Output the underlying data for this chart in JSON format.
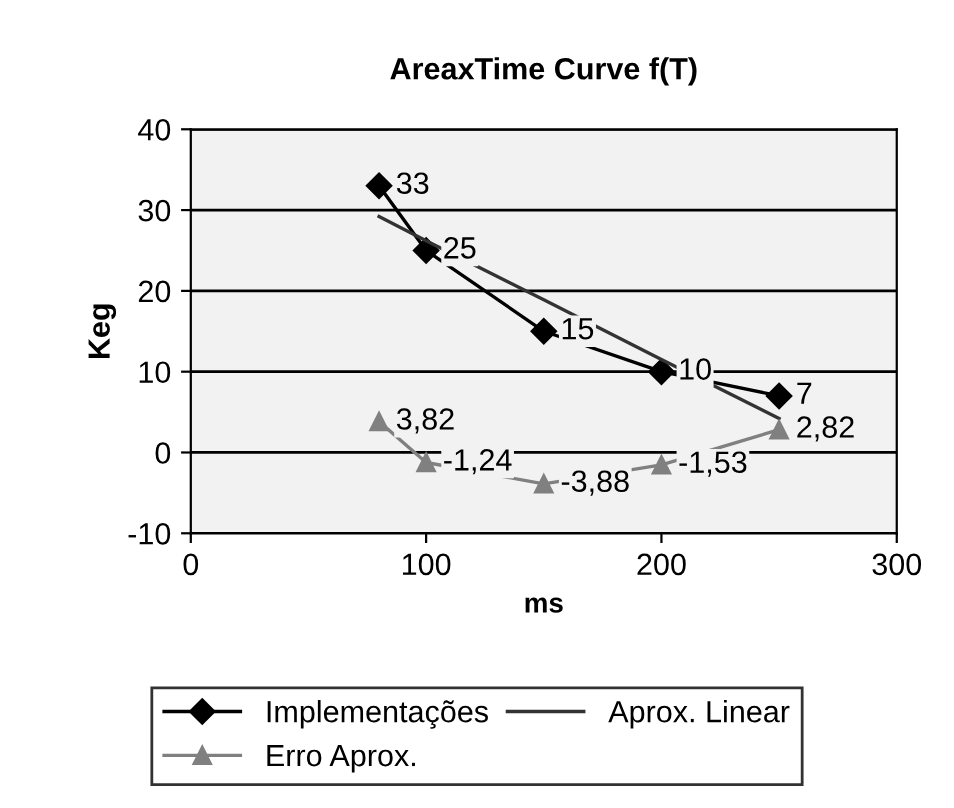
{
  "chart_data": {
    "type": "line",
    "title": "AreaxTime Curve f(T)",
    "xlabel": "ms",
    "ylabel": "Keg",
    "xlim": [
      0,
      300
    ],
    "xticks": [
      0,
      100,
      200,
      300
    ],
    "ylim": [
      -10,
      40
    ],
    "yticks": [
      -10,
      0,
      10,
      20,
      30,
      40
    ],
    "grid": "y",
    "legend": "bottom",
    "series": [
      {
        "name": "Implementações",
        "color": "#000000",
        "marker": "diamond",
        "x": [
          80,
          100,
          150,
          200,
          250
        ],
        "values": [
          33,
          25,
          15,
          10,
          7
        ],
        "value_labels": [
          "33",
          "25",
          "15",
          "10",
          "7"
        ]
      },
      {
        "name": "Aprox. Linear",
        "color": "#333333",
        "marker": "none",
        "x": [
          80,
          100,
          150,
          200,
          250
        ],
        "values": [
          29.2,
          26.2,
          18.9,
          11.5,
          4.2
        ]
      },
      {
        "name": "Erro Aprox.",
        "color": "#808080",
        "marker": "triangle",
        "x": [
          80,
          100,
          150,
          200,
          250
        ],
        "values": [
          3.82,
          -1.24,
          -3.88,
          -1.53,
          2.82
        ],
        "value_labels": [
          "3,82",
          "-1,24",
          "-3,88",
          "-1,53",
          "2,82"
        ]
      }
    ]
  }
}
